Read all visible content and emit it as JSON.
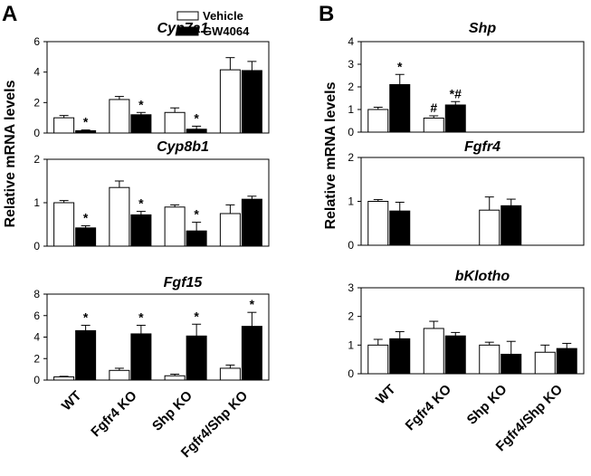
{
  "figure": {
    "panel_a_label": "A",
    "panel_b_label": "B",
    "ylabel": "Relative mRNA levels"
  },
  "legend": {
    "vehicle": "Vehicle",
    "gw4064": "GW4064"
  },
  "colors": {
    "vehicle": "#ffffff",
    "gw4064": "#000000",
    "frame": "#000000"
  },
  "chart_data": [
    {
      "type": "bar",
      "panel": "A",
      "title": "Cyp7a1",
      "categories": [
        "WT",
        "Fgfr4  KO",
        "Shp KO",
        "Fgfr4/Shp KO"
      ],
      "ylim": [
        0,
        6
      ],
      "yticks": [
        "0",
        "2",
        "4",
        "6"
      ],
      "series": [
        {
          "name": "Vehicle",
          "values": [
            1.0,
            2.2,
            1.35,
            4.15
          ],
          "errors": [
            0.15,
            0.2,
            0.3,
            0.8
          ]
        },
        {
          "name": "GW4064",
          "values": [
            0.15,
            1.2,
            0.25,
            4.1
          ],
          "errors": [
            0.05,
            0.15,
            0.2,
            0.6
          ]
        }
      ],
      "annotations": [
        {
          "series": 1,
          "index": 0,
          "text": "*"
        },
        {
          "series": 1,
          "index": 1,
          "text": "*"
        },
        {
          "series": 1,
          "index": 2,
          "text": "*"
        }
      ]
    },
    {
      "type": "bar",
      "panel": "A",
      "title": "Cyp8b1",
      "categories": [
        "WT",
        "Fgfr4  KO",
        "Shp KO",
        "Fgfr4/Shp KO"
      ],
      "ylim": [
        0,
        2
      ],
      "yticks": [
        "0",
        "1",
        "2"
      ],
      "series": [
        {
          "name": "Vehicle",
          "values": [
            1.0,
            1.35,
            0.9,
            0.75
          ],
          "errors": [
            0.05,
            0.15,
            0.05,
            0.2
          ]
        },
        {
          "name": "GW4064",
          "values": [
            0.42,
            0.72,
            0.35,
            1.08
          ],
          "errors": [
            0.05,
            0.08,
            0.2,
            0.07
          ]
        }
      ],
      "annotations": [
        {
          "series": 1,
          "index": 0,
          "text": "*"
        },
        {
          "series": 1,
          "index": 1,
          "text": "*"
        },
        {
          "series": 1,
          "index": 2,
          "text": "*"
        }
      ]
    },
    {
      "type": "bar",
      "panel": "A",
      "title": "Fgf15",
      "categories": [
        "WT",
        "Fgfr4  KO",
        "Shp KO",
        "Fgfr4/Shp KO"
      ],
      "ylim": [
        0,
        8
      ],
      "yticks": [
        "0",
        "2",
        "4",
        "6",
        "8"
      ],
      "series": [
        {
          "name": "Vehicle",
          "values": [
            0.3,
            0.9,
            0.4,
            1.1
          ],
          "errors": [
            0.05,
            0.2,
            0.15,
            0.3
          ]
        },
        {
          "name": "GW4064",
          "values": [
            4.6,
            4.3,
            4.1,
            5.0
          ],
          "errors": [
            0.5,
            0.8,
            1.1,
            1.3
          ]
        }
      ],
      "annotations": [
        {
          "series": 1,
          "index": 0,
          "text": "*"
        },
        {
          "series": 1,
          "index": 1,
          "text": "*"
        },
        {
          "series": 1,
          "index": 2,
          "text": "*"
        },
        {
          "series": 1,
          "index": 3,
          "text": "*"
        }
      ]
    },
    {
      "type": "bar",
      "panel": "B",
      "title": "Shp",
      "categories": [
        "WT",
        "Fgfr4  KO",
        "Shp KO",
        "Fgfr4/Shp KO"
      ],
      "ylim": [
        0,
        4
      ],
      "yticks": [
        "0",
        "1",
        "2",
        "3",
        "4"
      ],
      "series": [
        {
          "name": "Vehicle",
          "values": [
            1.0,
            0.62,
            0,
            0
          ],
          "errors": [
            0.1,
            0.1,
            0,
            0
          ]
        },
        {
          "name": "GW4064",
          "values": [
            2.1,
            1.2,
            0,
            0
          ],
          "errors": [
            0.45,
            0.15,
            0,
            0
          ]
        }
      ],
      "annotations": [
        {
          "series": 1,
          "index": 0,
          "text": "*"
        },
        {
          "series": 0,
          "index": 1,
          "text": "#"
        },
        {
          "series": 1,
          "index": 1,
          "text": "*#"
        }
      ]
    },
    {
      "type": "bar",
      "panel": "B",
      "title": "Fgfr4",
      "categories": [
        "WT",
        "Fgfr4  KO",
        "Shp KO",
        "Fgfr4/Shp KO"
      ],
      "ylim": [
        0,
        2
      ],
      "yticks": [
        "0",
        "1",
        "2"
      ],
      "series": [
        {
          "name": "Vehicle",
          "values": [
            1.0,
            0,
            0.8,
            0
          ],
          "errors": [
            0.04,
            0,
            0.3,
            0
          ]
        },
        {
          "name": "GW4064",
          "values": [
            0.78,
            0,
            0.9,
            0
          ],
          "errors": [
            0.2,
            0,
            0.15,
            0
          ]
        }
      ],
      "annotations": []
    },
    {
      "type": "bar",
      "panel": "B",
      "title": "bKlotho",
      "categories": [
        "WT",
        "Fgfr4  KO",
        "Shp KO",
        "Fgfr4/Shp KO"
      ],
      "ylim": [
        0,
        3
      ],
      "yticks": [
        "0",
        "1",
        "2",
        "3"
      ],
      "series": [
        {
          "name": "Vehicle",
          "values": [
            1.0,
            1.58,
            1.0,
            0.75
          ],
          "errors": [
            0.2,
            0.25,
            0.1,
            0.25
          ]
        },
        {
          "name": "GW4064",
          "values": [
            1.22,
            1.32,
            0.68,
            0.88
          ],
          "errors": [
            0.25,
            0.12,
            0.45,
            0.18
          ]
        }
      ],
      "annotations": []
    }
  ]
}
